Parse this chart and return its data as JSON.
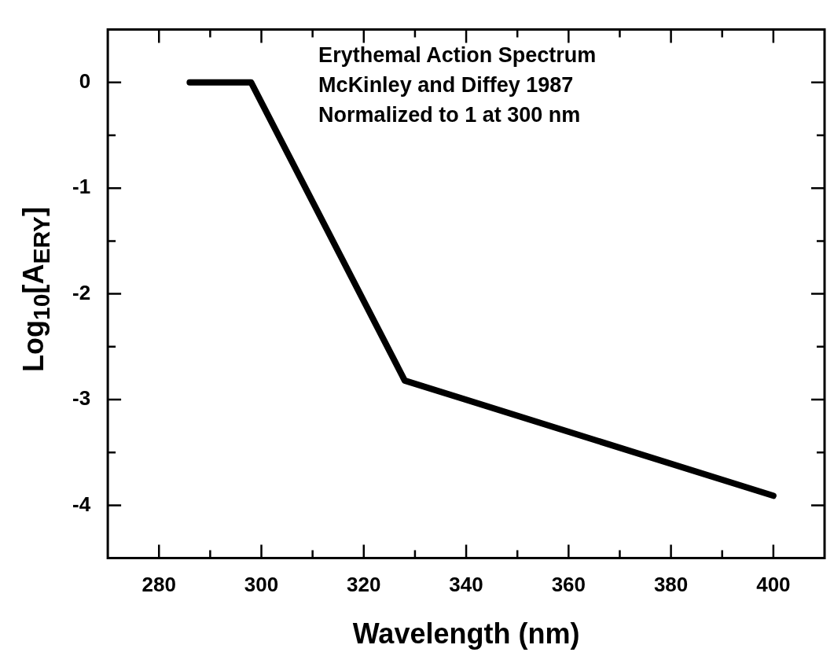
{
  "chart_data": {
    "type": "line",
    "xlabel": "Wavelength (nm)",
    "ylabel": "Log$_{10}$[A$_{ERY}$]",
    "x": [
      286,
      298,
      328,
      400
    ],
    "series": [
      {
        "color": "#000000",
        "values": [
          0,
          0,
          -2.82,
          -3.91
        ]
      }
    ],
    "xlim": [
      270,
      410
    ],
    "ylim": [
      -4.5,
      0.5
    ],
    "xticks": [
      280,
      {
        "value": 290,
        "label": null
      },
      300,
      {
        "value": 310,
        "label": null
      },
      320,
      {
        "value": 330,
        "label": null
      },
      340,
      {
        "value": 350,
        "label": null
      },
      360,
      {
        "value": 370,
        "label": null
      },
      380,
      {
        "value": 390,
        "label": null
      },
      400
    ],
    "yticks": [
      -4,
      {
        "value": -3.5,
        "label": null
      },
      -3,
      {
        "value": -2.5,
        "label": null
      },
      -2,
      {
        "value": -1.5,
        "label": null
      },
      -1,
      {
        "value": -0.5,
        "label": null
      },
      0
    ],
    "annotations": [
      "Erythemal Action Spectrum",
      "McKinley and Diffey 1987",
      "Normalized to 1 at 300 nm"
    ],
    "grid": false,
    "legend": false,
    "marker": "none",
    "line_style": "solid"
  }
}
